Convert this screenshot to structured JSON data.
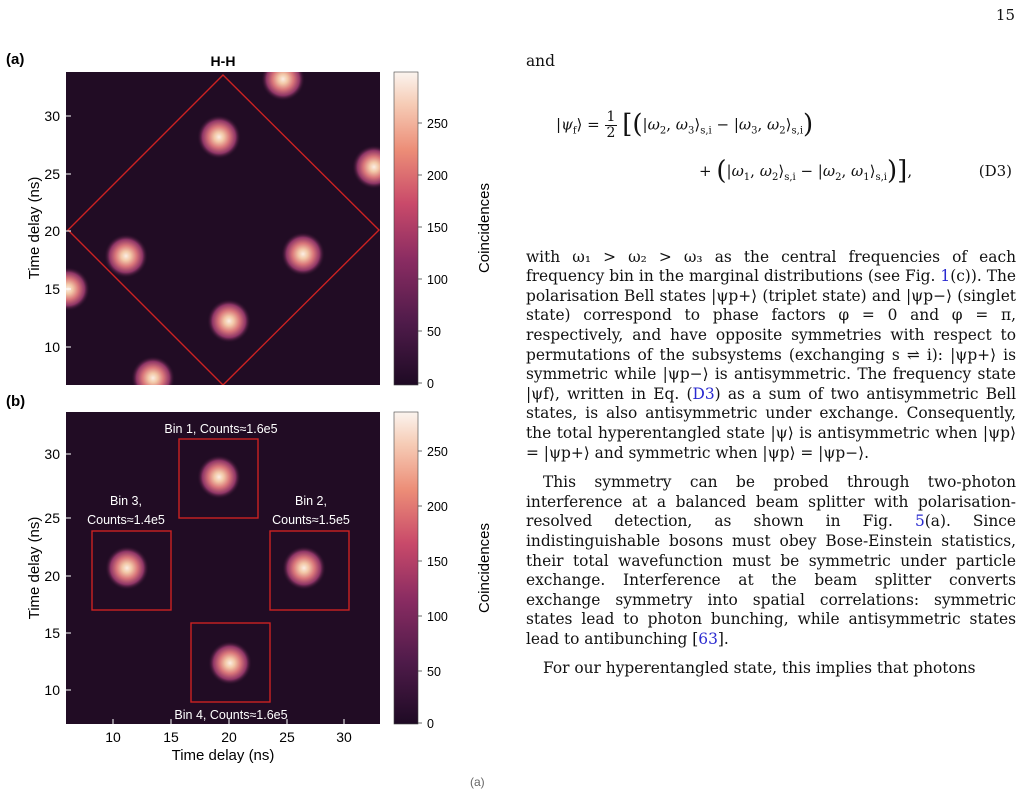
{
  "page_number": "15",
  "figure": {
    "panel_a": {
      "tag": "(a)",
      "title": "H-H",
      "ylabel": "Time delay (ns)",
      "yticks": [
        "30",
        "25",
        "20",
        "15",
        "10"
      ],
      "colorbar": {
        "label": "Coincidences",
        "ticks": [
          "250",
          "200",
          "150",
          "100",
          "50",
          "0"
        ]
      }
    },
    "panel_b": {
      "tag": "(b)",
      "xlabel": "Time delay (ns)",
      "ylabel": "Time delay (ns)",
      "xticks": [
        "10",
        "15",
        "20",
        "25",
        "30"
      ],
      "yticks": [
        "30",
        "25",
        "20",
        "15",
        "10"
      ],
      "bins": {
        "bin1": "Bin 1, Counts≈1.6e5",
        "bin2_l1": "Bin 2,",
        "bin2_l2": "Counts≈1.5e5",
        "bin3_l1": "Bin 3,",
        "bin3_l2": "Counts≈1.4e5",
        "bin4": "Bin 4, Counts≈1.6e5"
      },
      "colorbar": {
        "label": "Coincidences",
        "ticks": [
          "250",
          "200",
          "150",
          "100",
          "50",
          "0"
        ]
      }
    },
    "stray_marker": "(a)",
    "colors": {
      "frame": "#cc2222",
      "background": "#210c24"
    }
  },
  "text": {
    "and": "and",
    "eq_label": "(D3)",
    "p1_a": "with ω₁ > ω₂ > ω₃ as the central frequencies of each frequency bin in the marginal distributions (see Fig. ",
    "p1_ref1": "1",
    "p1_b": "(c)). The polarisation Bell states |ψp+⟩ (triplet state) and |ψp−⟩ (singlet state) correspond to phase factors φ = 0 and φ = π, respectively, and have opposite symmetries with respect to permutations of the subsystems (exchanging s ⇌ i): |ψp+⟩ is symmetric while |ψp−⟩ is antisymmetric. The frequency state |ψf⟩, written in Eq. (",
    "p1_ref2": "D3",
    "p1_c": ") as a sum of two antisymmetric Bell states, is also antisymmetric under exchange. Consequently, the total hyperentangled state |ψ⟩ is antisymmetric when |ψp⟩ = |ψp+⟩ and symmetric when |ψp⟩ = |ψp−⟩.",
    "p2_a": "This symmetry can be probed through two-photon interference at a balanced beam splitter with polarisation-resolved detection, as shown in Fig. ",
    "p2_ref1": "5",
    "p2_b": "(a). Since indistinguishable bosons must obey Bose-Einstein statistics, their total wavefunction must be symmetric under particle exchange. Interference at the beam splitter converts exchange symmetry into spatial correlations: symmetric states lead to photon bunching, while antisymmetric states lead to antibunching [",
    "p2_ref2": "63",
    "p2_c": "].",
    "p3": "For our hyperentangled state, this implies that photons"
  }
}
